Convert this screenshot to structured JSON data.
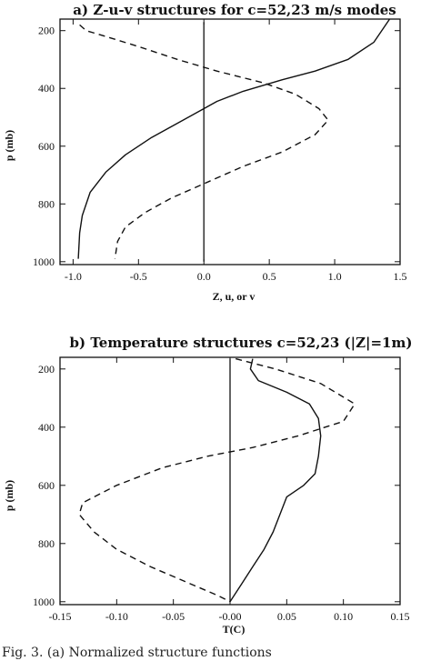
{
  "caption": "Fig. 3. (a) Normalized structure functions",
  "chart_data": [
    {
      "type": "line",
      "title": "a) Z-u-v structures for c=52,23 m/s modes",
      "xlabel": "Z, u, or v",
      "ylabel": "p (mb)",
      "xlim": [
        -1.1,
        1.5
      ],
      "ylim": [
        1010,
        160
      ],
      "y_inverted": true,
      "xticks": [
        "-1.0",
        "-0.5",
        "0.0",
        "0.5",
        "1.0",
        "1.5"
      ],
      "yticks": [
        "200",
        "400",
        "600",
        "800",
        "1000"
      ],
      "series": [
        {
          "style": "solid",
          "points": [
            [
              1.42,
              160
            ],
            [
              1.3,
              240
            ],
            [
              1.1,
              300
            ],
            [
              0.85,
              340
            ],
            [
              0.6,
              370
            ],
            [
              0.3,
              410
            ],
            [
              0.1,
              445
            ],
            [
              0.0,
              470
            ],
            [
              -0.2,
              520
            ],
            [
              -0.4,
              570
            ],
            [
              -0.6,
              630
            ],
            [
              -0.75,
              690
            ],
            [
              -0.87,
              760
            ],
            [
              -0.93,
              840
            ],
            [
              -0.95,
              900
            ],
            [
              -0.96,
              990
            ]
          ]
        },
        {
          "style": "dashed",
          "points": [
            [
              -0.95,
              180
            ],
            [
              -0.9,
              200
            ],
            [
              -0.75,
              220
            ],
            [
              -0.5,
              255
            ],
            [
              -0.2,
              300
            ],
            [
              0.1,
              340
            ],
            [
              0.45,
              380
            ],
            [
              0.7,
              420
            ],
            [
              0.88,
              470
            ],
            [
              0.95,
              510
            ],
            [
              0.85,
              560
            ],
            [
              0.6,
              620
            ],
            [
              0.3,
              670
            ],
            [
              0.0,
              730
            ],
            [
              -0.25,
              780
            ],
            [
              -0.45,
              830
            ],
            [
              -0.6,
              880
            ],
            [
              -0.66,
              930
            ],
            [
              -0.68,
              990
            ]
          ]
        },
        {
          "style": "solid",
          "points": [
            [
              0.0,
              170
            ],
            [
              0.0,
              1000
            ]
          ]
        }
      ]
    },
    {
      "type": "line",
      "title": "b) Temperature structures c=52,23 (|Z|=1m)",
      "xlabel": "T(C)",
      "ylabel": "p (mb)",
      "xlim": [
        -0.15,
        0.15
      ],
      "ylim": [
        1010,
        160
      ],
      "y_inverted": true,
      "xticks": [
        "-0.15",
        "-0.10",
        "-0.05",
        "-0.00",
        "0.05",
        "0.10",
        "0.15"
      ],
      "yticks": [
        "200",
        "400",
        "600",
        "800",
        "1000"
      ],
      "series": [
        {
          "style": "solid",
          "points": [
            [
              0.02,
              165
            ],
            [
              0.018,
              200
            ],
            [
              0.025,
              240
            ],
            [
              0.05,
              280
            ],
            [
              0.07,
              320
            ],
            [
              0.078,
              370
            ],
            [
              0.08,
              430
            ],
            [
              0.078,
              500
            ],
            [
              0.075,
              560
            ],
            [
              0.065,
              600
            ],
            [
              0.05,
              640
            ],
            [
              0.045,
              690
            ],
            [
              0.038,
              760
            ],
            [
              0.03,
              820
            ],
            [
              0.02,
              880
            ],
            [
              0.01,
              940
            ],
            [
              0.0,
              1000
            ]
          ]
        },
        {
          "style": "dashed",
          "points": [
            [
              0.005,
              165
            ],
            [
              0.04,
              200
            ],
            [
              0.08,
              250
            ],
            [
              0.11,
              320
            ],
            [
              0.1,
              380
            ],
            [
              0.06,
              430
            ],
            [
              0.02,
              470
            ],
            [
              -0.02,
              500
            ],
            [
              -0.06,
              540
            ],
            [
              -0.1,
              600
            ],
            [
              -0.13,
              660
            ],
            [
              -0.133,
              700
            ],
            [
              -0.12,
              760
            ],
            [
              -0.1,
              820
            ],
            [
              -0.07,
              880
            ],
            [
              -0.04,
              930
            ],
            [
              -0.01,
              980
            ],
            [
              0.0,
              1000
            ]
          ]
        },
        {
          "style": "solid",
          "points": [
            [
              0.0,
              165
            ],
            [
              0.0,
              1000
            ]
          ]
        }
      ]
    }
  ]
}
